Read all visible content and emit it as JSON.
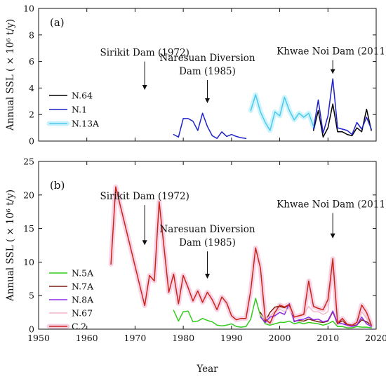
{
  "chart_data": {
    "xlabel": "Year",
    "xlim": [
      1950,
      2020
    ],
    "xticks": [
      1950,
      1960,
      1970,
      1980,
      1990,
      2000,
      2010,
      2020
    ],
    "panels": [
      {
        "id": "a",
        "label": "(a)",
        "type": "line",
        "ylabel": "Annual SSL ( × 10⁶ t/y)",
        "ylim": [
          0,
          10
        ],
        "yticks": [
          0,
          2,
          4,
          6,
          8,
          10
        ],
        "legend_position": "left",
        "annotations": [
          {
            "lines": [
              "Sirikit Dam (1972)"
            ],
            "year": 1972,
            "arrow_top": 6.0,
            "arrow_bottom": 3.9
          },
          {
            "lines": [
              "Naresuan Diversion",
              "Dam (1985)"
            ],
            "year": 1985,
            "arrow_top": 4.6,
            "arrow_bottom": 2.9
          },
          {
            "lines": [
              "Khwae Noi Dam (2011)"
            ],
            "year": 2011,
            "arrow_top": 6.1,
            "arrow_bottom": 5.1
          }
        ],
        "series": [
          {
            "name": "N.64",
            "color": "#000000",
            "x": [
              2007,
              2008,
              2009,
              2010,
              2011,
              2012,
              2013,
              2014,
              2015,
              2016,
              2017,
              2018,
              2019
            ],
            "y": [
              0.8,
              2.3,
              0.3,
              1.0,
              2.8,
              0.7,
              0.7,
              0.5,
              0.4,
              1.0,
              0.7,
              2.4,
              0.8
            ]
          },
          {
            "name": "N.1",
            "color": "#1f22c8",
            "x": [
              1978,
              1979,
              1980,
              1981,
              1982,
              1983,
              1984,
              1985,
              1986,
              1987,
              1988,
              1989,
              1990,
              1991,
              1992,
              1993,
              2007,
              2008,
              2009,
              2010,
              2011,
              2012,
              2013,
              2014,
              2015,
              2016,
              2017,
              2018,
              2019
            ],
            "y": [
              0.5,
              0.3,
              1.7,
              1.7,
              1.5,
              0.8,
              2.1,
              1.1,
              0.4,
              0.2,
              0.7,
              0.35,
              0.5,
              0.35,
              0.25,
              0.2,
              0.9,
              3.1,
              0.6,
              1.9,
              4.7,
              1.0,
              0.9,
              0.8,
              0.5,
              1.4,
              0.9,
              1.8,
              0.9
            ]
          },
          {
            "name": "N.13A",
            "color": "#4cc8ee",
            "halo": "#c8f2fb",
            "x": [
              1994,
              1995,
              1996,
              1997,
              1998,
              1999,
              2000,
              2001,
              2002,
              2003,
              2004,
              2005,
              2006,
              2007
            ],
            "y": [
              2.3,
              3.5,
              2.2,
              1.4,
              0.8,
              2.2,
              1.9,
              3.3,
              2.3,
              1.6,
              2.1,
              1.8,
              2.1,
              1.1
            ]
          }
        ]
      },
      {
        "id": "b",
        "label": "(b)",
        "type": "line",
        "ylabel": "Annual SSL ( × 10⁶ t/y)",
        "ylim": [
          0,
          25
        ],
        "yticks": [
          0,
          5,
          10,
          15,
          20,
          25
        ],
        "legend_position": "lower-left",
        "annotations": [
          {
            "lines": [
              "Sirikit Dam (1972)"
            ],
            "year": 1972,
            "arrow_top": 18.5,
            "arrow_bottom": 12.6
          },
          {
            "lines": [
              "Naresuan Diversion",
              "Dam (1985)"
            ],
            "year": 1985,
            "arrow_top": 11.6,
            "arrow_bottom": 7.6
          },
          {
            "lines": [
              "Khwae Noi Dam (2011)"
            ],
            "year": 2011,
            "arrow_top": 17.3,
            "arrow_bottom": 13.6
          }
        ],
        "series": [
          {
            "name": "N.5A",
            "color": "#33cc1f",
            "x": [
              1978,
              1979,
              1980,
              1981,
              1982,
              1983,
              1984,
              1985,
              1986,
              1987,
              1988,
              1989,
              1990,
              1991,
              1992,
              1993,
              1994,
              1995,
              1996,
              1997,
              1998,
              1999,
              2000,
              2001,
              2002,
              2003,
              2004,
              2005,
              2006,
              2007,
              2008,
              2009,
              2010,
              2011,
              2012,
              2013,
              2014,
              2015,
              2016,
              2017,
              2018,
              2019
            ],
            "y": [
              2.8,
              1.2,
              2.6,
              2.7,
              1.1,
              1.2,
              1.6,
              1.3,
              1.1,
              0.6,
              0.5,
              0.6,
              0.8,
              0.4,
              0.3,
              0.4,
              1.5,
              4.6,
              2.0,
              0.8,
              0.6,
              0.8,
              1.0,
              1.0,
              1.2,
              0.8,
              1.0,
              0.8,
              1.0,
              0.9,
              0.8,
              0.6,
              0.8,
              1.2,
              0.4,
              0.4,
              0.2,
              0.2,
              0.4,
              0.3,
              0.3,
              0.2
            ]
          },
          {
            "name": "N.7A",
            "color": "#7a1d0e",
            "x": [
              1996,
              1997,
              1998,
              1999,
              2000,
              2001,
              2002,
              2003,
              2004,
              2005,
              2006,
              2007,
              2008,
              2009,
              2010,
              2011,
              2012,
              2013,
              2014,
              2015,
              2016,
              2017,
              2018,
              2019
            ],
            "y": [
              2.5,
              1.2,
              2.5,
              3.3,
              3.4,
              3.2,
              3.6,
              1.2,
              1.3,
              1.2,
              1.5,
              1.3,
              1.1,
              1.0,
              1.2,
              2.6,
              0.8,
              1.3,
              0.6,
              0.6,
              0.6,
              1.4,
              1.1,
              0.6
            ]
          },
          {
            "name": "N.8A",
            "color": "#8e2ae6",
            "x": [
              1996,
              1997,
              1998,
              1999,
              2000,
              2001,
              2002,
              2003,
              2004,
              2005,
              2006,
              2007,
              2008,
              2009,
              2010,
              2011,
              2012,
              2013,
              2014,
              2015,
              2016,
              2017,
              2018,
              2019
            ],
            "y": [
              1.8,
              1.0,
              1.8,
              2.0,
              2.5,
              2.2,
              3.8,
              1.1,
              1.4,
              1.5,
              1.8,
              1.4,
              1.5,
              1.1,
              1.3,
              2.7,
              0.9,
              0.8,
              0.6,
              0.4,
              0.6,
              1.8,
              0.8,
              0.4
            ]
          },
          {
            "name": "N.67",
            "color": "#f0b9cc",
            "x": [
              1996,
              1997,
              1998,
              1999,
              2000,
              2001,
              2002,
              2003,
              2004,
              2005,
              2006,
              2007,
              2008,
              2009,
              2010,
              2011,
              2012,
              2013,
              2014,
              2015,
              2016,
              2017,
              2018,
              2019
            ],
            "y": [
              2.2,
              1.4,
              2.0,
              2.6,
              3.0,
              2.6,
              3.2,
              1.8,
              2.0,
              2.2,
              3.4,
              2.6,
              2.6,
              2.2,
              2.6,
              9.5,
              1.2,
              1.4,
              0.8,
              0.6,
              0.9,
              2.6,
              1.6,
              0.6
            ]
          },
          {
            "name": "C.2",
            "color": "#c9241a",
            "halo": "#f7cfe3",
            "x": [
              1965,
              1966,
              1972,
              1973,
              1974,
              1975,
              1977,
              1978,
              1979,
              1980,
              1981,
              1982,
              1983,
              1984,
              1985,
              1986,
              1987,
              1988,
              1989,
              1990,
              1991,
              1992,
              1993,
              1994,
              1995,
              1996,
              1997,
              1998,
              1999,
              2000,
              2001,
              2002,
              2003,
              2004,
              2005,
              2006,
              2007,
              2008,
              2009,
              2010,
              2011,
              2012,
              2013,
              2014,
              2015,
              2016,
              2017,
              2018,
              2019
            ],
            "y": [
              9.7,
              21.2,
              3.5,
              8.0,
              7.2,
              19.0,
              5.5,
              8.2,
              3.8,
              8.0,
              6.2,
              4.2,
              5.7,
              4.0,
              5.5,
              4.4,
              2.9,
              4.8,
              3.9,
              2.0,
              1.4,
              1.6,
              1.6,
              5.8,
              12.1,
              9.1,
              1.5,
              0.9,
              2.5,
              3.6,
              3.3,
              3.7,
              1.8,
              2.0,
              2.2,
              7.2,
              3.4,
              3.1,
              2.9,
              4.4,
              10.5,
              0.9,
              1.6,
              0.7,
              0.6,
              1.0,
              3.6,
              2.5,
              0.6
            ]
          }
        ]
      }
    ]
  }
}
